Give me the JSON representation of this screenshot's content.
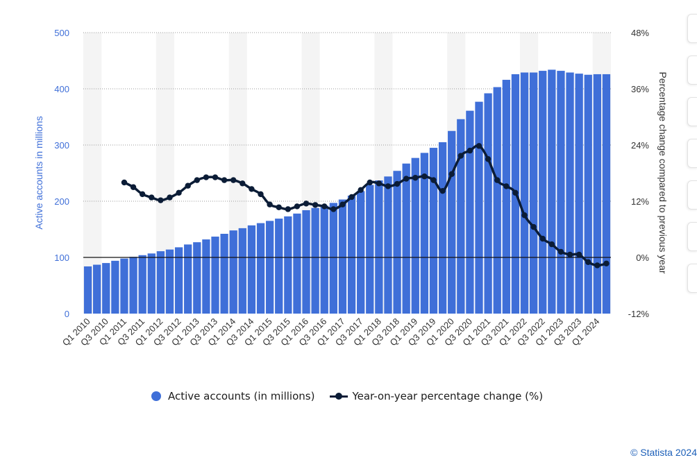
{
  "colors": {
    "bars": "#3f6fd8",
    "line": "#0b1c36",
    "left_axis": "#3f6fd8",
    "right_axis": "#333333",
    "band": "#f4f4f4"
  },
  "legend": {
    "accounts_label": "Active accounts (in millions)",
    "yoy_label": "Year-on-year percentage change (%)"
  },
  "copyright": "© Statista 2024",
  "chart_data": {
    "type": "bar",
    "categories": [
      "Q1 2010",
      "Q2 2010",
      "Q3 2010",
      "Q4 2010",
      "Q1 2011",
      "Q2 2011",
      "Q3 2011",
      "Q4 2011",
      "Q1 2012",
      "Q2 2012",
      "Q3 2012",
      "Q4 2012",
      "Q1 2013",
      "Q2 2013",
      "Q3 2013",
      "Q4 2013",
      "Q1 2014",
      "Q2 2014",
      "Q3 2014",
      "Q4 2014",
      "Q1 2015",
      "Q2 2015",
      "Q3 2015",
      "Q4 2015",
      "Q1 2016",
      "Q2 2016",
      "Q3 2016",
      "Q4 2016",
      "Q1 2017",
      "Q2 2017",
      "Q3 2017",
      "Q4 2017",
      "Q1 2018",
      "Q2 2018",
      "Q3 2018",
      "Q4 2018",
      "Q1 2019",
      "Q2 2019",
      "Q3 2019",
      "Q4 2019",
      "Q1 2020",
      "Q2 2020",
      "Q3 2020",
      "Q4 2020",
      "Q1 2021",
      "Q2 2021",
      "Q3 2021",
      "Q4 2021",
      "Q1 2022",
      "Q2 2022",
      "Q3 2022",
      "Q4 2022",
      "Q1 2023",
      "Q2 2023",
      "Q3 2023",
      "Q4 2023",
      "Q1 2024",
      "Q2 2024"
    ],
    "tick_labels": [
      "Q1 2010",
      "Q3 2010",
      "Q1 2011",
      "Q3 2011",
      "Q1 2012",
      "Q3 2012",
      "Q1 2013",
      "Q3 2013",
      "Q1 2014",
      "Q3 2014",
      "Q1 2015",
      "Q3 2015",
      "Q1 2016",
      "Q3 2016",
      "Q1 2017",
      "Q3 2017",
      "Q1 2018",
      "Q3 2018",
      "Q1 2019",
      "Q3 2019",
      "Q1 2020",
      "Q3 2020",
      "Q1 2021",
      "Q3 2021",
      "Q1 2022",
      "Q3 2022",
      "Q1 2023",
      "Q3 2023",
      "Q1 2024"
    ],
    "series": [
      {
        "name": "Active accounts (in millions)",
        "type": "bar",
        "axis": "left",
        "values": [
          84,
          87,
          90,
          94,
          98,
          101,
          104,
          107,
          111,
          114,
          118,
          123,
          127,
          132,
          137,
          142,
          148,
          152,
          157,
          161,
          165,
          169,
          173,
          178,
          184,
          188,
          192,
          197,
          203,
          210,
          218,
          229,
          237,
          244,
          254,
          267,
          277,
          286,
          295,
          305,
          325,
          346,
          361,
          377,
          392,
          403,
          416,
          426,
          429,
          429,
          432,
          434,
          432,
          429,
          427,
          425,
          426,
          426
        ]
      },
      {
        "name": "Year-on-year percentage change (%)",
        "type": "line",
        "axis": "right",
        "values": [
          null,
          null,
          null,
          null,
          16.0,
          15.0,
          13.5,
          12.8,
          12.2,
          12.8,
          13.8,
          15.3,
          16.5,
          17.1,
          17.1,
          16.5,
          16.5,
          15.8,
          14.6,
          13.5,
          11.3,
          10.7,
          10.3,
          10.9,
          11.5,
          11.2,
          10.9,
          10.3,
          11.3,
          12.9,
          14.4,
          16.0,
          15.8,
          15.2,
          15.7,
          16.8,
          17.0,
          17.3,
          16.5,
          14.2,
          17.8,
          21.7,
          22.8,
          23.8,
          21.0,
          16.5,
          15.2,
          13.8,
          9.0,
          6.5,
          4.0,
          2.8,
          1.2,
          0.6,
          0.6,
          -1.0,
          -1.7,
          -1.3
        ]
      }
    ],
    "y_left": {
      "label": "Active accounts in millions",
      "min": 0,
      "max": 500,
      "ticks": [
        0,
        100,
        200,
        300,
        400,
        500
      ]
    },
    "y_right": {
      "label": "Percentage change compared to previous year",
      "min": -12,
      "max": 48,
      "ticks": [
        "-12%",
        "0%",
        "12%",
        "24%",
        "36%",
        "48%"
      ]
    },
    "grid": true,
    "legend_position": "bottom"
  }
}
